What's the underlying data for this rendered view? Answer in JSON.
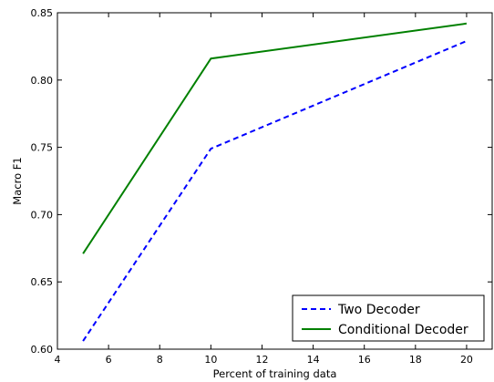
{
  "chart_data": {
    "type": "line",
    "title": "",
    "xlabel": "Percent of training data",
    "ylabel": "Macro F1",
    "xlim": [
      4,
      21
    ],
    "ylim": [
      0.6,
      0.85
    ],
    "x_ticks": [
      4,
      6,
      8,
      10,
      12,
      14,
      16,
      18,
      20
    ],
    "y_ticks": [
      0.6,
      0.65,
      0.7,
      0.75,
      0.8,
      0.85
    ],
    "grid": false,
    "legend_position": "bottom-right",
    "series": [
      {
        "name": "Two Decoder",
        "style": "dashed",
        "color": "#0000ff",
        "x": [
          5,
          10,
          20
        ],
        "y": [
          0.606,
          0.749,
          0.829
        ]
      },
      {
        "name": "Conditional Decoder",
        "style": "solid",
        "color": "#008000",
        "x": [
          5,
          10,
          20
        ],
        "y": [
          0.671,
          0.816,
          0.842
        ]
      }
    ]
  }
}
